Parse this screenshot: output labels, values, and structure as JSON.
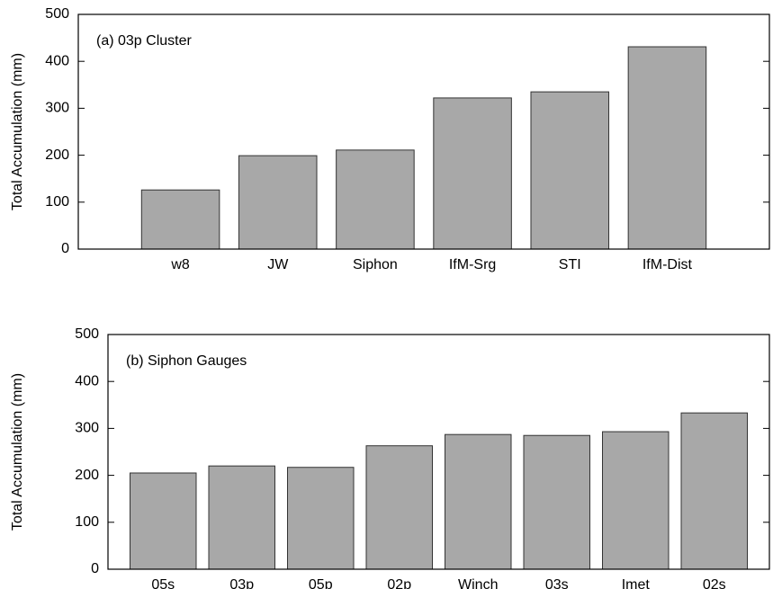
{
  "chart_data": [
    {
      "type": "bar",
      "annotation": "(a) 03p Cluster",
      "ylabel": "Total Accumulation (mm)",
      "categories": [
        "w8",
        "JW",
        "Siphon",
        "IfM-Srg",
        "STI",
        "IfM-Dist"
      ],
      "values": [
        126,
        199,
        211,
        322,
        335,
        431
      ],
      "color": "#a8a8a8",
      "ylim": [
        0,
        500
      ],
      "yticks": [
        0,
        100,
        200,
        300,
        400,
        500
      ]
    },
    {
      "type": "bar",
      "annotation": "(b) Siphon Gauges",
      "ylabel": "Total Accumulation (mm)",
      "categories": [
        "05s",
        "03p",
        "05p",
        "02p",
        "Winch",
        "03s",
        "Imet",
        "02s"
      ],
      "values": [
        205,
        220,
        217,
        263,
        287,
        285,
        293,
        333
      ],
      "color": "#a8a8a8",
      "ylim": [
        0,
        500
      ],
      "yticks": [
        0,
        100,
        200,
        300,
        400,
        500
      ]
    }
  ]
}
